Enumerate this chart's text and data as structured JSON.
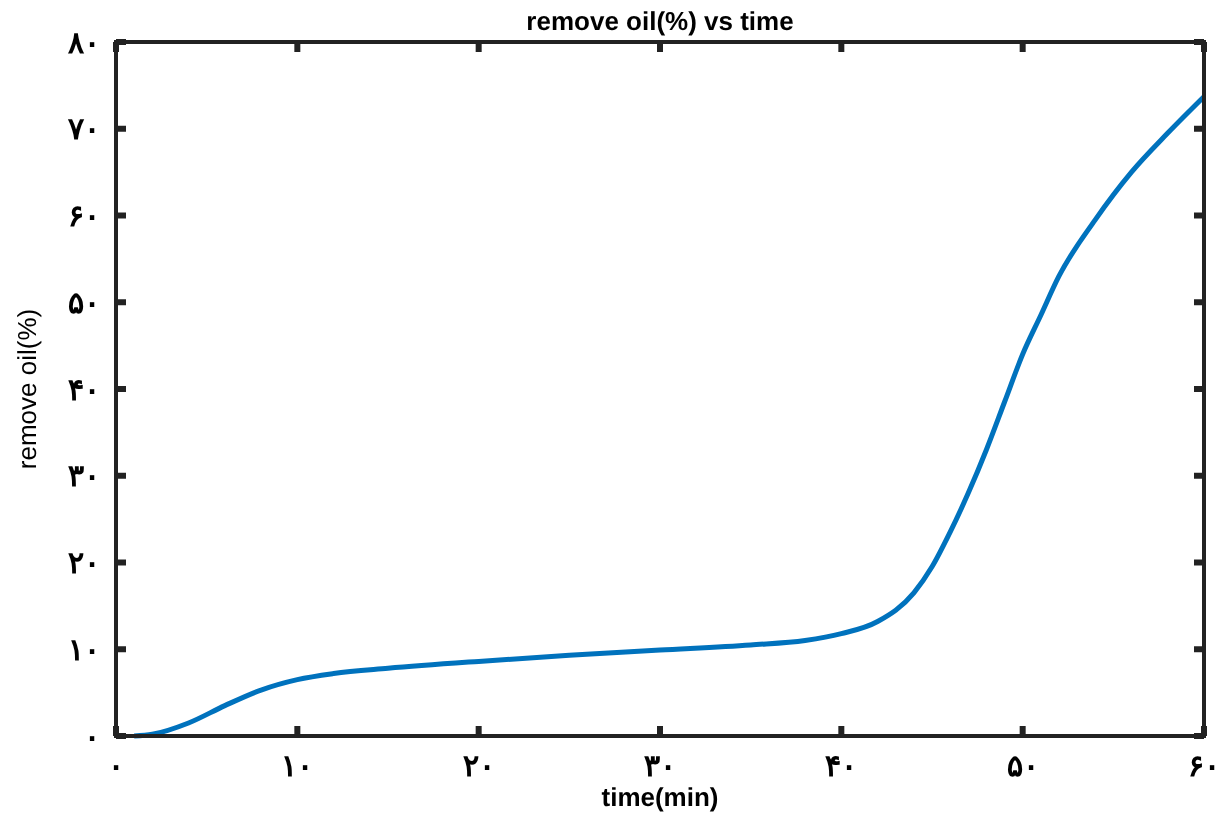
{
  "chart_data": {
    "type": "line",
    "title": "remove oil(%) vs time",
    "xlabel": "time(min)",
    "ylabel": "remove oil(%)",
    "xlim": [
      0,
      60
    ],
    "ylim": [
      0,
      80
    ],
    "xticks": [
      {
        "value": 0,
        "label": "۰"
      },
      {
        "value": 10,
        "label": "۱۰"
      },
      {
        "value": 20,
        "label": "۲۰"
      },
      {
        "value": 30,
        "label": "۳۰"
      },
      {
        "value": 40,
        "label": "۴۰"
      },
      {
        "value": 50,
        "label": "۵۰"
      },
      {
        "value": 60,
        "label": "۶۰"
      }
    ],
    "yticks": [
      {
        "value": 0,
        "label": "۰"
      },
      {
        "value": 10,
        "label": "۱۰"
      },
      {
        "value": 20,
        "label": "۲۰"
      },
      {
        "value": 30,
        "label": "۳۰"
      },
      {
        "value": 40,
        "label": "۴۰"
      },
      {
        "value": 50,
        "label": "۵۰"
      },
      {
        "value": 60,
        "label": "۶۰"
      },
      {
        "value": 70,
        "label": "۷۰"
      },
      {
        "value": 80,
        "label": "۸۰"
      }
    ],
    "grid": false,
    "marker": "none",
    "line_style": "solid",
    "x": [
      1,
      2,
      4,
      6,
      8,
      10,
      12,
      15,
      20,
      25,
      30,
      35,
      38,
      40,
      42,
      44,
      45,
      46,
      47,
      48,
      49,
      50,
      51,
      52,
      54,
      56,
      58,
      60
    ],
    "series": [
      {
        "color": "#0072bd",
        "values": [
          0,
          0.2,
          1.5,
          3.5,
          5.3,
          6.5,
          7.2,
          7.8,
          8.6,
          9.3,
          9.9,
          10.5,
          11,
          11.8,
          13.2,
          16.5,
          19.5,
          23.5,
          28,
          33,
          38.5,
          44,
          48.5,
          53,
          59.5,
          65,
          69.5,
          73.7
        ]
      }
    ]
  }
}
